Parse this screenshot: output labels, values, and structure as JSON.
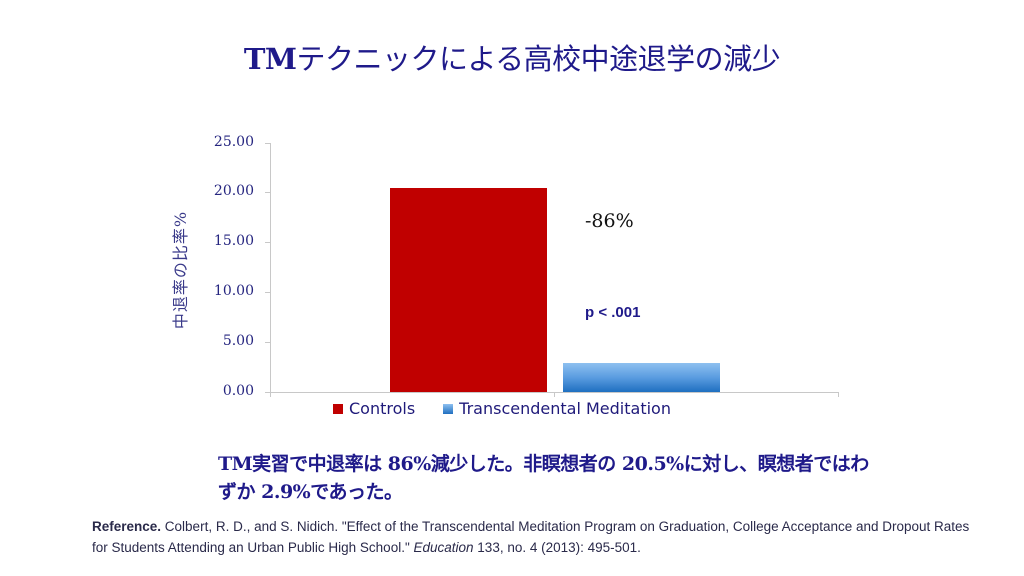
{
  "slide": {
    "title_bold": "TM",
    "title_rest": "テクニックによる高校中途退学の減少",
    "summary": "TM実習で中退率は 86%減少した。非瞑想者の 20.5%に対し、瞑想者ではわずか 2.9%であった。",
    "reference_label": "Reference.",
    "reference_text_1": " Colbert, R. D., and S. Nidich. \"Effect of the Transcendental Meditation Program on Graduation, College Acceptance and Dropout Rates for Students Attending an Urban Public High School.\" ",
    "reference_journal": "Education",
    "reference_text_2": " 133, no. 4 (2013): 495-501."
  },
  "chart_data": {
    "type": "bar",
    "title": "TMテクニックによる高校中途退学の減少",
    "xlabel": "",
    "ylabel": "中退率の比率%",
    "ylim": [
      0,
      25
    ],
    "yticks": [
      "0.00",
      "5.00",
      "10.00",
      "15.00",
      "20.00",
      "25.00"
    ],
    "categories": [
      "Controls",
      "Transcendental Meditation"
    ],
    "values": [
      20.5,
      2.9
    ],
    "series": [
      {
        "name": "Controls",
        "values": [
          20.5
        ],
        "color": "#c00000"
      },
      {
        "name": "Transcendental Meditation",
        "values": [
          2.9
        ],
        "color": "#4a90dc"
      }
    ],
    "annotations": [
      "-86%",
      "p < .001"
    ],
    "legend_position": "bottom",
    "grid": false
  }
}
